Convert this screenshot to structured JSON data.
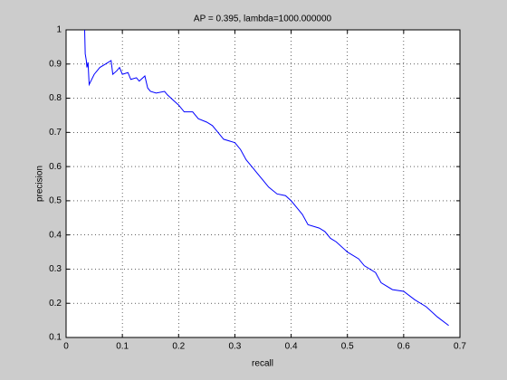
{
  "chart_data": {
    "type": "line",
    "title": "AP = 0.395, lambda=1000.000000",
    "xlabel": "recall",
    "ylabel": "precision",
    "x": [
      0.033,
      0.034,
      0.036,
      0.037,
      0.039,
      0.041,
      0.05,
      0.06,
      0.07,
      0.08,
      0.083,
      0.09,
      0.095,
      0.1,
      0.11,
      0.115,
      0.125,
      0.13,
      0.14,
      0.145,
      0.15,
      0.16,
      0.175,
      0.18,
      0.19,
      0.2,
      0.21,
      0.225,
      0.235,
      0.25,
      0.26,
      0.27,
      0.28,
      0.3,
      0.31,
      0.32,
      0.33,
      0.34,
      0.35,
      0.36,
      0.375,
      0.39,
      0.4,
      0.41,
      0.42,
      0.43,
      0.45,
      0.46,
      0.47,
      0.48,
      0.5,
      0.52,
      0.53,
      0.55,
      0.56,
      0.58,
      0.6,
      0.62,
      0.64,
      0.66,
      0.68
    ],
    "series": [
      {
        "name": "precision",
        "color": "#0000ff",
        "values": [
          1.0,
          0.93,
          0.91,
          0.89,
          0.905,
          0.84,
          0.87,
          0.89,
          0.9,
          0.91,
          0.87,
          0.88,
          0.89,
          0.87,
          0.875,
          0.855,
          0.86,
          0.85,
          0.865,
          0.83,
          0.82,
          0.815,
          0.82,
          0.81,
          0.795,
          0.78,
          0.76,
          0.76,
          0.74,
          0.73,
          0.72,
          0.7,
          0.68,
          0.67,
          0.65,
          0.62,
          0.6,
          0.58,
          0.56,
          0.54,
          0.52,
          0.515,
          0.5,
          0.48,
          0.46,
          0.43,
          0.42,
          0.41,
          0.39,
          0.38,
          0.35,
          0.33,
          0.31,
          0.29,
          0.26,
          0.24,
          0.235,
          0.21,
          0.19,
          0.16,
          0.135
        ]
      }
    ],
    "xlim": [
      0,
      0.7
    ],
    "xticks": [
      0,
      0.1,
      0.2,
      0.3,
      0.4,
      0.5,
      0.6,
      0.7
    ],
    "ylim": [
      0.1,
      1
    ],
    "yticks": [
      0.1,
      0.2,
      0.3,
      0.4,
      0.5,
      0.6,
      0.7,
      0.8,
      0.9,
      1
    ],
    "grid": true
  }
}
